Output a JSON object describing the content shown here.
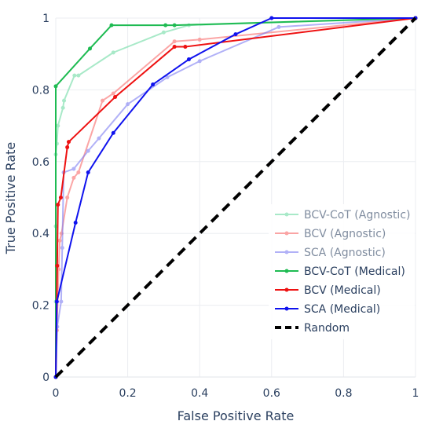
{
  "chart_data": {
    "type": "line",
    "xlabel": "False Positive Rate",
    "ylabel": "True Positive Rate",
    "xlim": [
      0,
      1
    ],
    "ylim": [
      0,
      1
    ],
    "xticks": [
      0,
      0.2,
      0.4,
      0.6,
      0.8,
      1
    ],
    "xtick_labels": [
      "0",
      "0.2",
      "0.4",
      "0.6",
      "0.8",
      "1"
    ],
    "yticks": [
      0,
      0.2,
      0.4,
      0.6,
      0.8,
      1
    ],
    "ytick_labels": [
      "0",
      "0.2",
      "0.4",
      "0.6",
      "0.8",
      "1"
    ],
    "grid": true,
    "legend_position": "right",
    "series": [
      {
        "name": "BCV-CoT (Agnostic)",
        "color": "#6fdca4",
        "opacity": 0.6,
        "width": 2,
        "dash": "solid",
        "markers": true,
        "x": [
          0,
          0,
          0,
          0,
          0.003,
          0.006,
          0.02,
          0.023,
          0.052,
          0.063,
          0.16,
          0.3,
          0.37,
          1
        ],
        "y": [
          0,
          0.21,
          0.42,
          0.62,
          0.65,
          0.7,
          0.75,
          0.77,
          0.84,
          0.84,
          0.904,
          0.96,
          0.98,
          1
        ]
      },
      {
        "name": "BCV (Agnostic)",
        "color": "#f96a6a",
        "opacity": 0.6,
        "width": 2,
        "dash": "solid",
        "markers": true,
        "x": [
          0,
          0.003,
          0.008,
          0.011,
          0.016,
          0.032,
          0.05,
          0.063,
          0.13,
          0.16,
          0.33,
          0.4,
          1
        ],
        "y": [
          0,
          0.13,
          0.3,
          0.38,
          0.4,
          0.5,
          0.555,
          0.57,
          0.77,
          0.79,
          0.935,
          0.94,
          1
        ]
      },
      {
        "name": "SCA (Agnostic)",
        "color": "#7e7ef2",
        "opacity": 0.6,
        "width": 2,
        "dash": "solid",
        "markers": true,
        "x": [
          0,
          0.004,
          0.015,
          0.018,
          0.022,
          0.05,
          0.09,
          0.12,
          0.2,
          0.31,
          0.4,
          0.62,
          1
        ],
        "y": [
          0,
          0.14,
          0.21,
          0.36,
          0.57,
          0.58,
          0.63,
          0.665,
          0.76,
          0.835,
          0.88,
          0.975,
          1
        ]
      },
      {
        "name": "BCV-CoT (Medical)",
        "color": "#1ebb52",
        "opacity": 1,
        "width": 2,
        "dash": "solid",
        "markers": true,
        "x": [
          0,
          0,
          0.095,
          0.155,
          0.305,
          0.33,
          1
        ],
        "y": [
          0,
          0.81,
          0.915,
          0.98,
          0.98,
          0.98,
          1
        ]
      },
      {
        "name": "BCV (Medical)",
        "color": "#ee1111",
        "opacity": 1,
        "width": 2,
        "dash": "solid",
        "markers": true,
        "x": [
          0,
          0.004,
          0.006,
          0.014,
          0.032,
          0.036,
          0.165,
          0.33,
          0.36,
          1
        ],
        "y": [
          0,
          0.31,
          0.48,
          0.5,
          0.64,
          0.655,
          0.78,
          0.92,
          0.92,
          1
        ]
      },
      {
        "name": "SCA (Medical)",
        "color": "#0f12ee",
        "opacity": 1,
        "width": 2,
        "dash": "solid",
        "markers": true,
        "x": [
          0,
          0.003,
          0.055,
          0.09,
          0.16,
          0.27,
          0.37,
          0.5,
          0.6,
          1
        ],
        "y": [
          0,
          0.21,
          0.43,
          0.57,
          0.68,
          0.815,
          0.885,
          0.955,
          1,
          1
        ]
      },
      {
        "name": "Random",
        "color": "#000000",
        "opacity": 1,
        "width": 4,
        "dash": "dashed",
        "markers": false,
        "x": [
          0,
          1
        ],
        "y": [
          0,
          1
        ]
      }
    ]
  }
}
